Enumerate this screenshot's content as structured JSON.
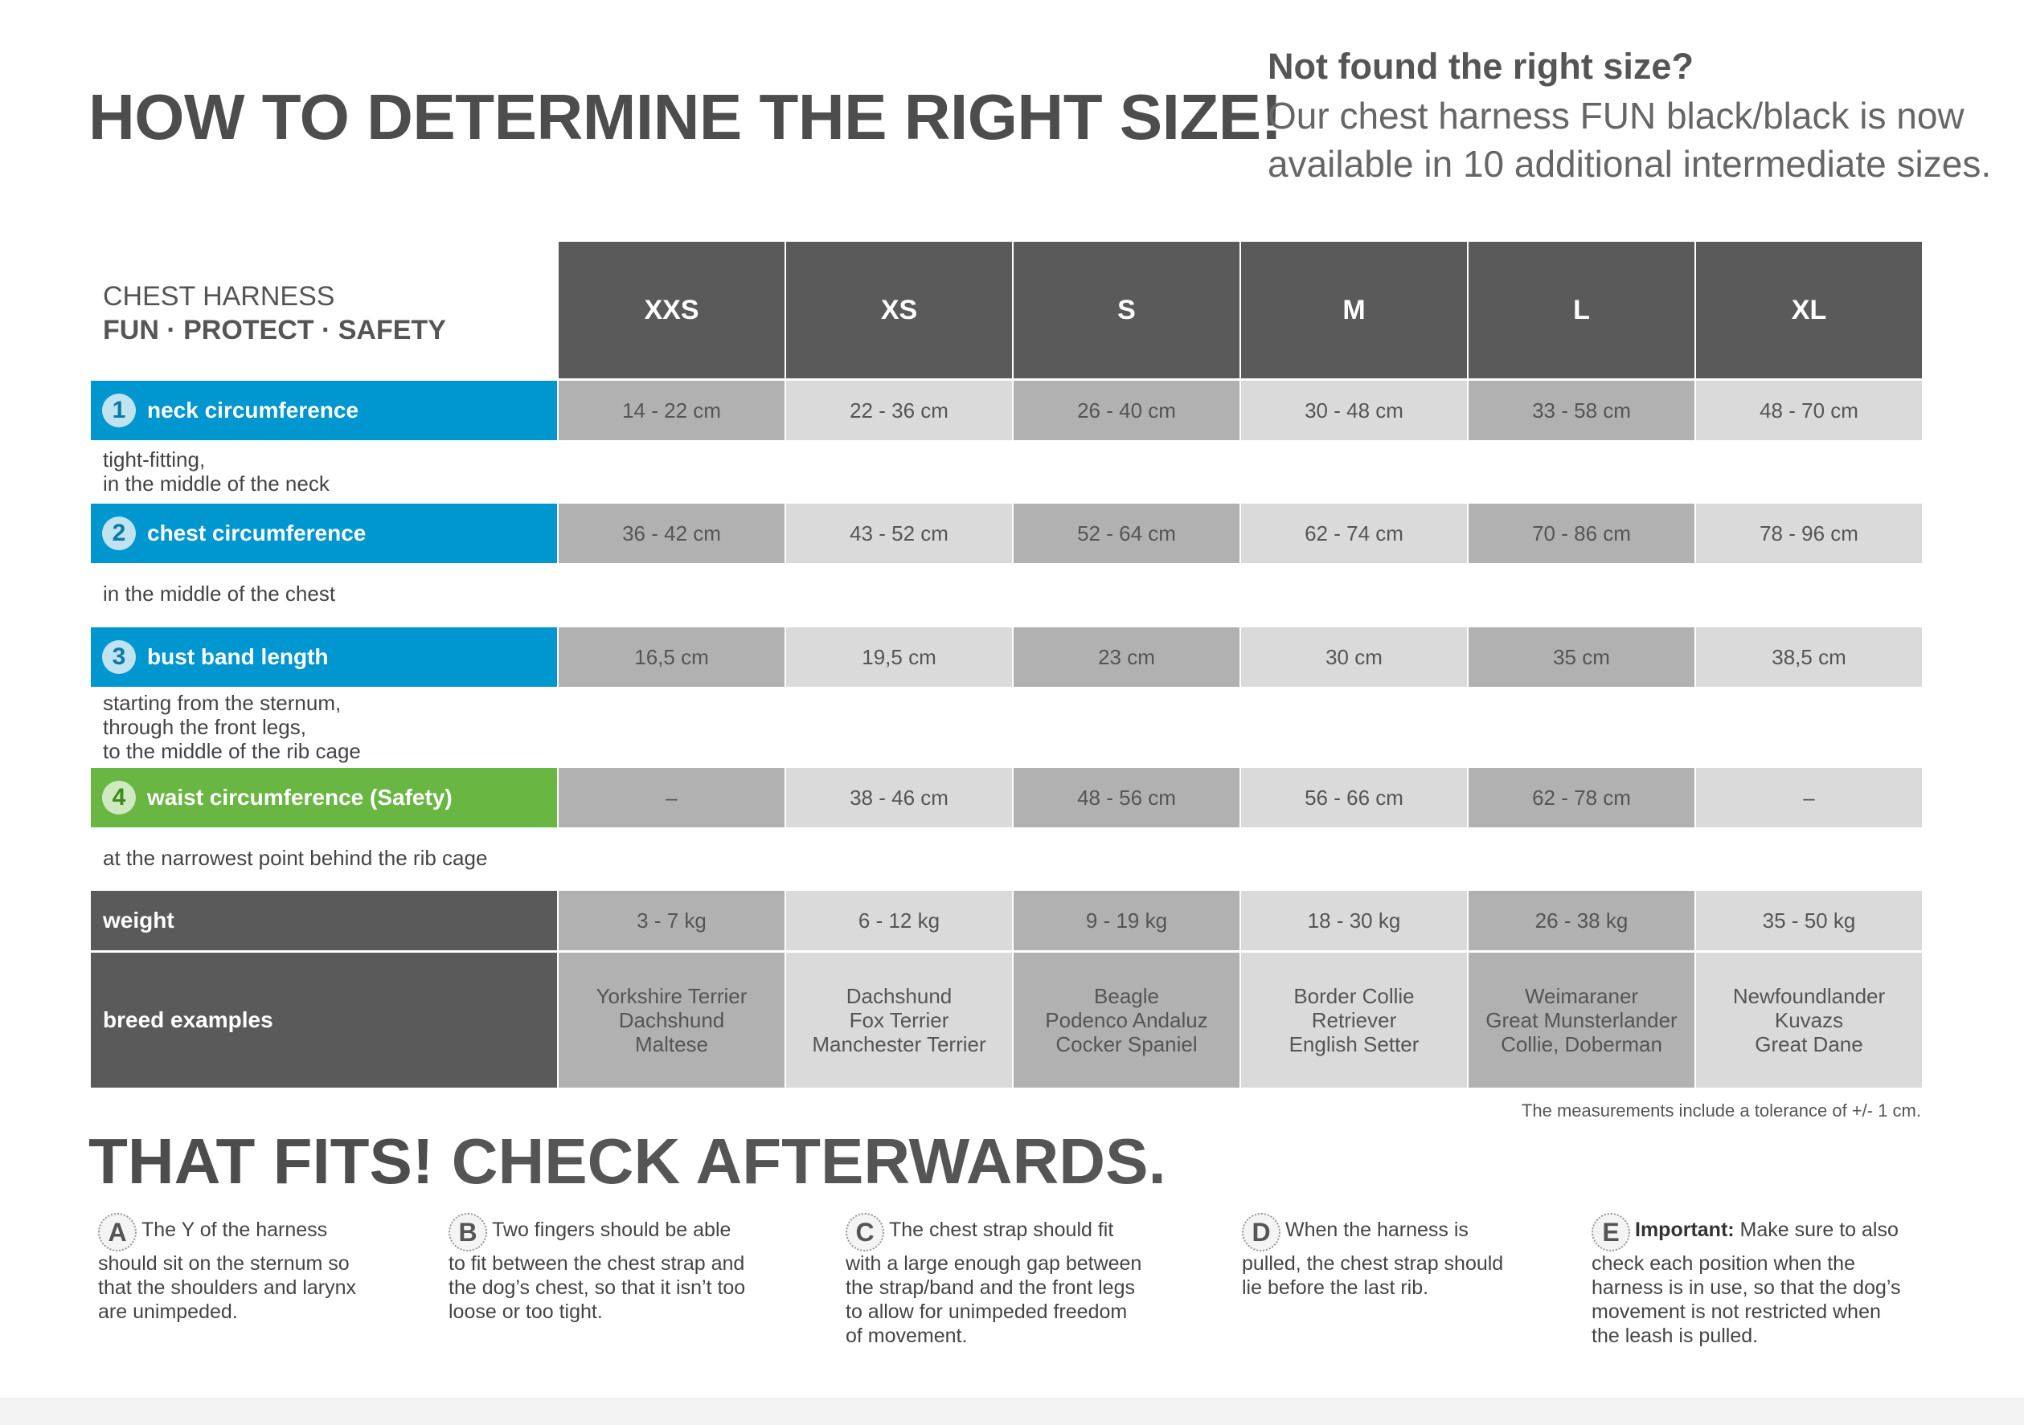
{
  "title": "HOW TO DETERMINE THE RIGHT SIZE!",
  "promo": {
    "question": "Not found the right size?",
    "line1": "Our chest harness FUN black/black is now",
    "line2": "available in 10 additional intermediate sizes."
  },
  "table_label": {
    "line1": "CHEST HARNESS",
    "line2": "FUN · PROTECT · SAFETY"
  },
  "sizes": [
    "XXS",
    "XS",
    "S",
    "M",
    "L",
    "XL"
  ],
  "rows": {
    "neck": {
      "number": "1",
      "label": "neck circumference",
      "desc1": "tight-fitting,",
      "desc2": "in the middle of the neck",
      "values": [
        "14 - 22 cm",
        "22 - 36 cm",
        "26 - 40 cm",
        "30 - 48 cm",
        "33 - 58 cm",
        "48 - 70 cm"
      ]
    },
    "chest": {
      "number": "2",
      "label": "chest circumference",
      "desc1": "in the middle of the chest",
      "values": [
        "36 - 42 cm",
        "43 - 52 cm",
        "52 - 64 cm",
        "62 - 74 cm",
        "70 - 86 cm",
        "78 - 96 cm"
      ]
    },
    "bust": {
      "number": "3",
      "label": "bust band length",
      "desc1": "starting from the sternum,",
      "desc2": "through the front legs,",
      "desc3": "to the middle of the rib cage",
      "values": [
        "16,5 cm",
        "19,5 cm",
        "23 cm",
        "30 cm",
        "35 cm",
        "38,5 cm"
      ]
    },
    "waist": {
      "number": "4",
      "label": "waist circumference (Safety)",
      "desc1": "at the narrowest point behind the rib cage",
      "values": [
        "–",
        "38 - 46 cm",
        "48 - 56 cm",
        "56 - 66 cm",
        "62 - 78 cm",
        "–"
      ]
    },
    "weight": {
      "label": "weight",
      "values": [
        "3 - 7 kg",
        "6 - 12 kg",
        "9 - 19 kg",
        "18 - 30 kg",
        "26 - 38 kg",
        "35 - 50 kg"
      ]
    },
    "breeds": {
      "label": "breed examples",
      "values": [
        [
          "Yorkshire Terrier",
          "Dachshund",
          "Maltese"
        ],
        [
          "Dachshund",
          "Fox Terrier",
          "Manchester Terrier"
        ],
        [
          "Beagle",
          "Podenco Andaluz",
          "Cocker Spaniel"
        ],
        [
          "Border Collie",
          "Retriever",
          "English Setter"
        ],
        [
          "Weimaraner",
          "Great Munsterlander",
          "Collie, Doberman"
        ],
        [
          "Newfoundlander",
          "Kuvazs",
          "Great Dane"
        ]
      ]
    }
  },
  "tolerance": "The measurements include a tolerance of +/- 1 cm.",
  "fits": {
    "bold": "THAT FITS!",
    "rest": " CHECK AFTERWARDS."
  },
  "tips": [
    {
      "letter": "A",
      "lines": [
        "The Y of the harness",
        "should sit on the sternum so",
        "that the shoulders and larynx",
        "are unimpeded."
      ]
    },
    {
      "letter": "B",
      "lines": [
        "Two fingers should be able",
        "to fit between the chest strap and",
        "the dog’s chest, so that it isn’t too",
        "loose or too tight."
      ]
    },
    {
      "letter": "C",
      "lines": [
        "The chest strap should fit",
        "with a large enough gap between",
        "the strap/band and the front legs",
        "to allow for unimpeded freedom",
        "of movement."
      ]
    },
    {
      "letter": "D",
      "lines": [
        "When the harness is",
        "pulled, the chest strap should",
        "lie before the last rib."
      ]
    },
    {
      "letter": "E",
      "strong": "Important:",
      "lines": [
        " Make sure to also",
        "check each position when the",
        "harness is in use, so that the dog’s",
        "movement is not restricted when",
        "the leash is pulled."
      ]
    }
  ]
}
